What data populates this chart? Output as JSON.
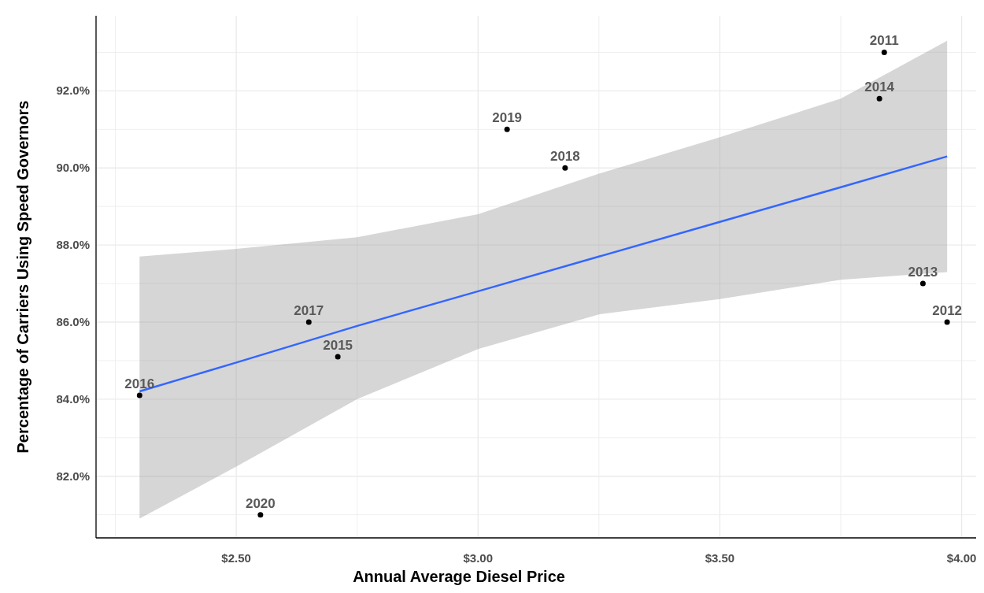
{
  "chart_data": {
    "type": "scatter",
    "xlabel": "Annual Average Diesel Price",
    "ylabel": "Percentage of Carriers Using Speed Governors",
    "xlim": [
      2.21,
      4.03
    ],
    "ylim": [
      80.4,
      93.95
    ],
    "xticks": [
      {
        "value": 2.25,
        "label": null
      },
      {
        "value": 2.5,
        "label": "$2.50"
      },
      {
        "value": 2.75,
        "label": null
      },
      {
        "value": 3,
        "label": "$3.00"
      },
      {
        "value": 3.25,
        "label": null
      },
      {
        "value": 3.5,
        "label": "$3.50"
      },
      {
        "value": 3.75,
        "label": null
      },
      {
        "value": 4,
        "label": "$4.00"
      }
    ],
    "yticks": [
      {
        "value": 81,
        "label": null
      },
      {
        "value": 82,
        "label": "82.0%"
      },
      {
        "value": 83,
        "label": null
      },
      {
        "value": 84,
        "label": "84.0%"
      },
      {
        "value": 85,
        "label": null
      },
      {
        "value": 86,
        "label": "86.0%"
      },
      {
        "value": 87,
        "label": null
      },
      {
        "value": 88,
        "label": "88.0%"
      },
      {
        "value": 89,
        "label": null
      },
      {
        "value": 90,
        "label": "90.0%"
      },
      {
        "value": 91,
        "label": null
      },
      {
        "value": 92,
        "label": "92.0%"
      },
      {
        "value": 93,
        "label": null
      }
    ],
    "grid": true,
    "series": [
      {
        "marker": "circle",
        "color": "#000000",
        "x": [
          3.84,
          3.97,
          3.92,
          3.83,
          2.71,
          2.3,
          2.65,
          3.18,
          3.06,
          2.55
        ],
        "values": [
          93.0,
          86.0,
          87.0,
          91.8,
          85.1,
          84.1,
          86.0,
          90.0,
          91.0,
          81.0
        ]
      },
      {
        "type": "line",
        "marker": "none",
        "color": "#3366ff",
        "x": [
          2.3,
          2.5,
          2.75,
          3.0,
          3.25,
          3.5,
          3.75,
          3.97
        ],
        "values": [
          84.2,
          84.95,
          85.9,
          86.8,
          87.7,
          88.6,
          89.5,
          90.3
        ],
        "lower": [
          80.9,
          82.25,
          84.0,
          85.3,
          86.2,
          86.6,
          87.1,
          87.3
        ],
        "upper": [
          87.7,
          87.9,
          88.2,
          88.8,
          89.85,
          90.8,
          91.8,
          93.3
        ]
      }
    ],
    "annotations": [
      {
        "text": "2011",
        "x": 3.84,
        "y": 93.0
      },
      {
        "text": "2012",
        "x": 3.97,
        "y": 86.0
      },
      {
        "text": "2013",
        "x": 3.92,
        "y": 87.0
      },
      {
        "text": "2014",
        "x": 3.83,
        "y": 91.8
      },
      {
        "text": "2015",
        "x": 2.71,
        "y": 85.1
      },
      {
        "text": "2016",
        "x": 2.3,
        "y": 84.1
      },
      {
        "text": "2017",
        "x": 2.65,
        "y": 86.0
      },
      {
        "text": "2018",
        "x": 3.18,
        "y": 90.0
      },
      {
        "text": "2019",
        "x": 3.06,
        "y": 91.0
      },
      {
        "text": "2020",
        "x": 2.55,
        "y": 81.0
      }
    ]
  }
}
